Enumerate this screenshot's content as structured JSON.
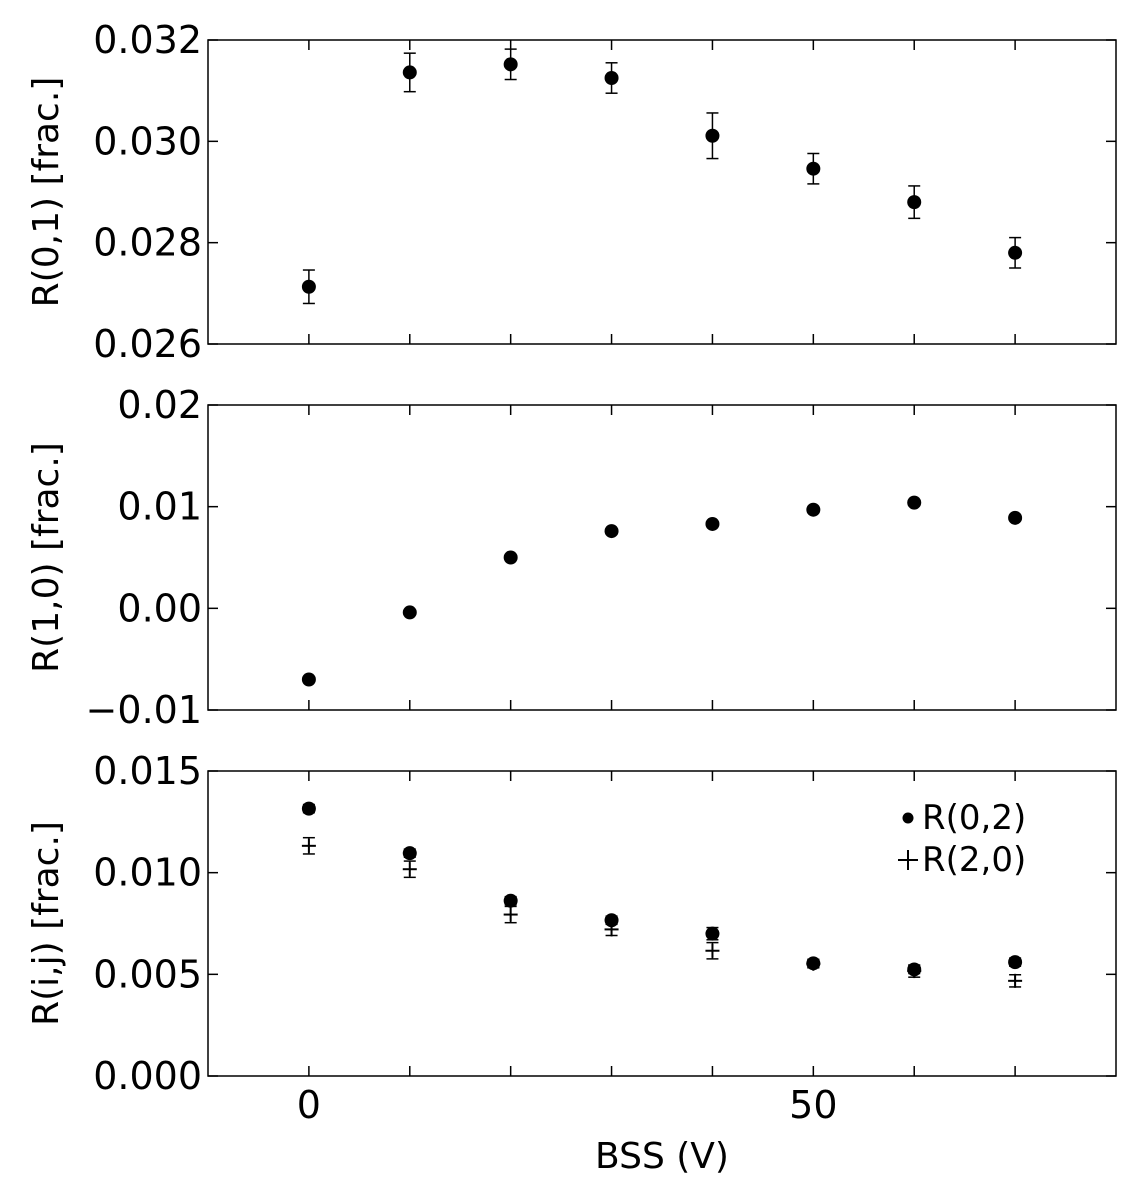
{
  "chart_data": [
    {
      "type": "scatter",
      "ylabel": "R(0,1) [frac.]",
      "xlabel": "",
      "xlim": [
        -10,
        80
      ],
      "ylim": [
        0.026,
        0.032
      ],
      "yticks": [
        "0.026",
        "0.028",
        "0.030",
        "0.032"
      ],
      "xticks": [],
      "series": [
        {
          "marker": "circle",
          "x": [
            0,
            10,
            20,
            30,
            40,
            50,
            60,
            70
          ],
          "y": [
            0.02713,
            0.03136,
            0.03152,
            0.03125,
            0.03011,
            0.02946,
            0.0288,
            0.0278
          ],
          "yerr": [
            0.00033,
            0.00038,
            0.0003,
            0.0003,
            0.00045,
            0.0003,
            0.00032,
            0.0003
          ]
        }
      ]
    },
    {
      "type": "scatter",
      "ylabel": "R(1,0) [frac.]",
      "xlabel": "",
      "xlim": [
        -10,
        80
      ],
      "ylim": [
        -0.01,
        0.02
      ],
      "yticks": [
        "−0.01",
        "0.00",
        "0.01",
        "0.02"
      ],
      "xticks": [],
      "series": [
        {
          "marker": "circle",
          "x": [
            0,
            10,
            20,
            30,
            40,
            50,
            60,
            70
          ],
          "y": [
            -0.007,
            -0.0004,
            0.005,
            0.0076,
            0.0083,
            0.0097,
            0.0104,
            0.0089
          ],
          "yerr": [
            0,
            0,
            0,
            0,
            0,
            0,
            0,
            0
          ]
        }
      ]
    },
    {
      "type": "scatter",
      "ylabel": "R(i,j) [frac.]",
      "xlabel": "BSS (V)",
      "xlim": [
        -10,
        80
      ],
      "ylim": [
        0.0,
        0.015
      ],
      "yticks": [
        "0.000",
        "0.005",
        "0.010",
        "0.015"
      ],
      "xticks": [
        "0",
        "50"
      ],
      "xtick_values": [
        0,
        50
      ],
      "legend_position": "top-right",
      "series": [
        {
          "name": "R(0,2)",
          "marker": "circle",
          "x": [
            0,
            10,
            20,
            30,
            40,
            50,
            60,
            70
          ],
          "y": [
            0.01315,
            0.01096,
            0.00862,
            0.00766,
            0.007,
            0.00554,
            0.00524,
            0.0056
          ],
          "yerr": [
            0.0002,
            0.0002,
            0.0002,
            0.0002,
            0.0003,
            0.0002,
            0.0002,
            0.0002
          ]
        },
        {
          "name": "R(2,0)",
          "marker": "plus",
          "x": [
            0,
            10,
            20,
            30,
            40,
            50,
            60,
            70
          ],
          "y": [
            0.01132,
            0.01017,
            0.00794,
            0.00721,
            0.00616,
            0.00552,
            0.00516,
            0.00468
          ],
          "yerr": [
            0.0004,
            0.0004,
            0.0004,
            0.0003,
            0.0004,
            0.0002,
            0.0003,
            0.0003
          ]
        }
      ]
    }
  ]
}
